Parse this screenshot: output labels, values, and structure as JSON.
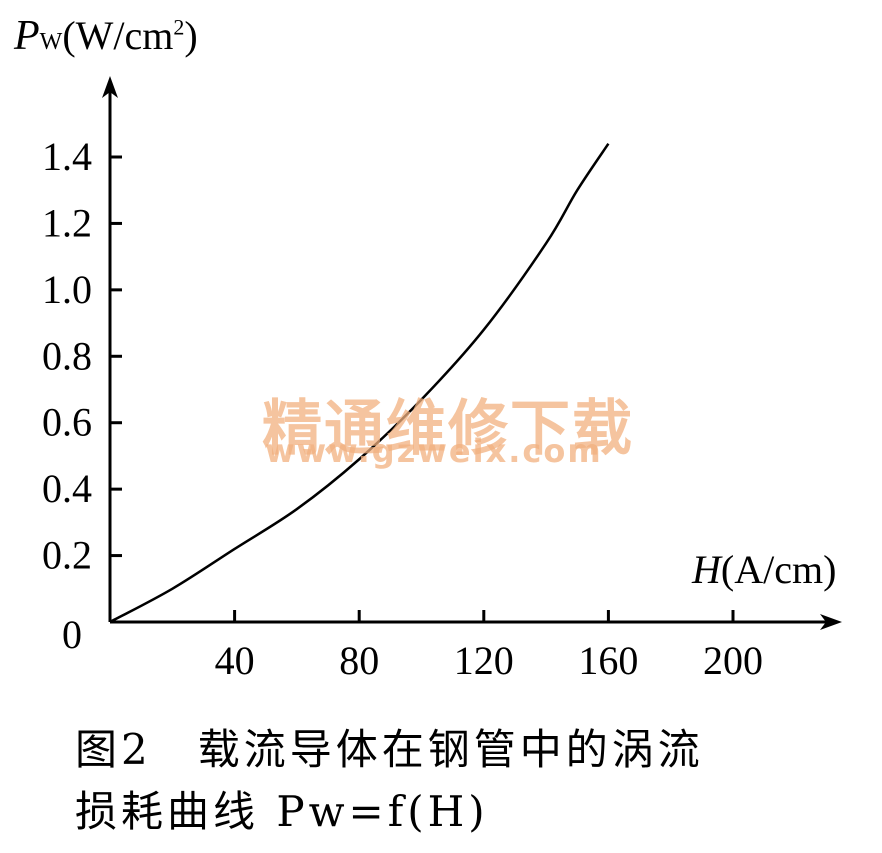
{
  "chart_data": {
    "type": "line",
    "ylabel": "Pw (W/cm²)",
    "xlabel": "H (A/cm)",
    "x_ticks": [
      40,
      80,
      120,
      160,
      200
    ],
    "y_ticks": [
      0,
      0.2,
      0.4,
      0.6,
      0.8,
      1.0,
      1.2,
      1.4
    ],
    "y_tick_labels": [
      "0",
      "0.2",
      "0.4",
      "0.6",
      "0.8",
      "1.0",
      "1.2",
      "1.4"
    ],
    "x_tick_labels": [
      "40",
      "80",
      "120",
      "160",
      "200"
    ],
    "xlim": [
      0,
      230
    ],
    "ylim": [
      0,
      1.55
    ],
    "series": [
      {
        "x": [
          0,
          20,
          40,
          60,
          80,
          100,
          120,
          140,
          150,
          160
        ],
        "y": [
          0,
          0.1,
          0.22,
          0.34,
          0.49,
          0.67,
          0.88,
          1.14,
          1.3,
          1.44
        ]
      }
    ]
  },
  "watermark": {
    "line1": "精通维修下载",
    "line2": "www.gzweix.com"
  },
  "caption": {
    "line1": "图2　载流导体在钢管中的涡流",
    "line2": "损耗曲线 Pw=f(H)"
  }
}
